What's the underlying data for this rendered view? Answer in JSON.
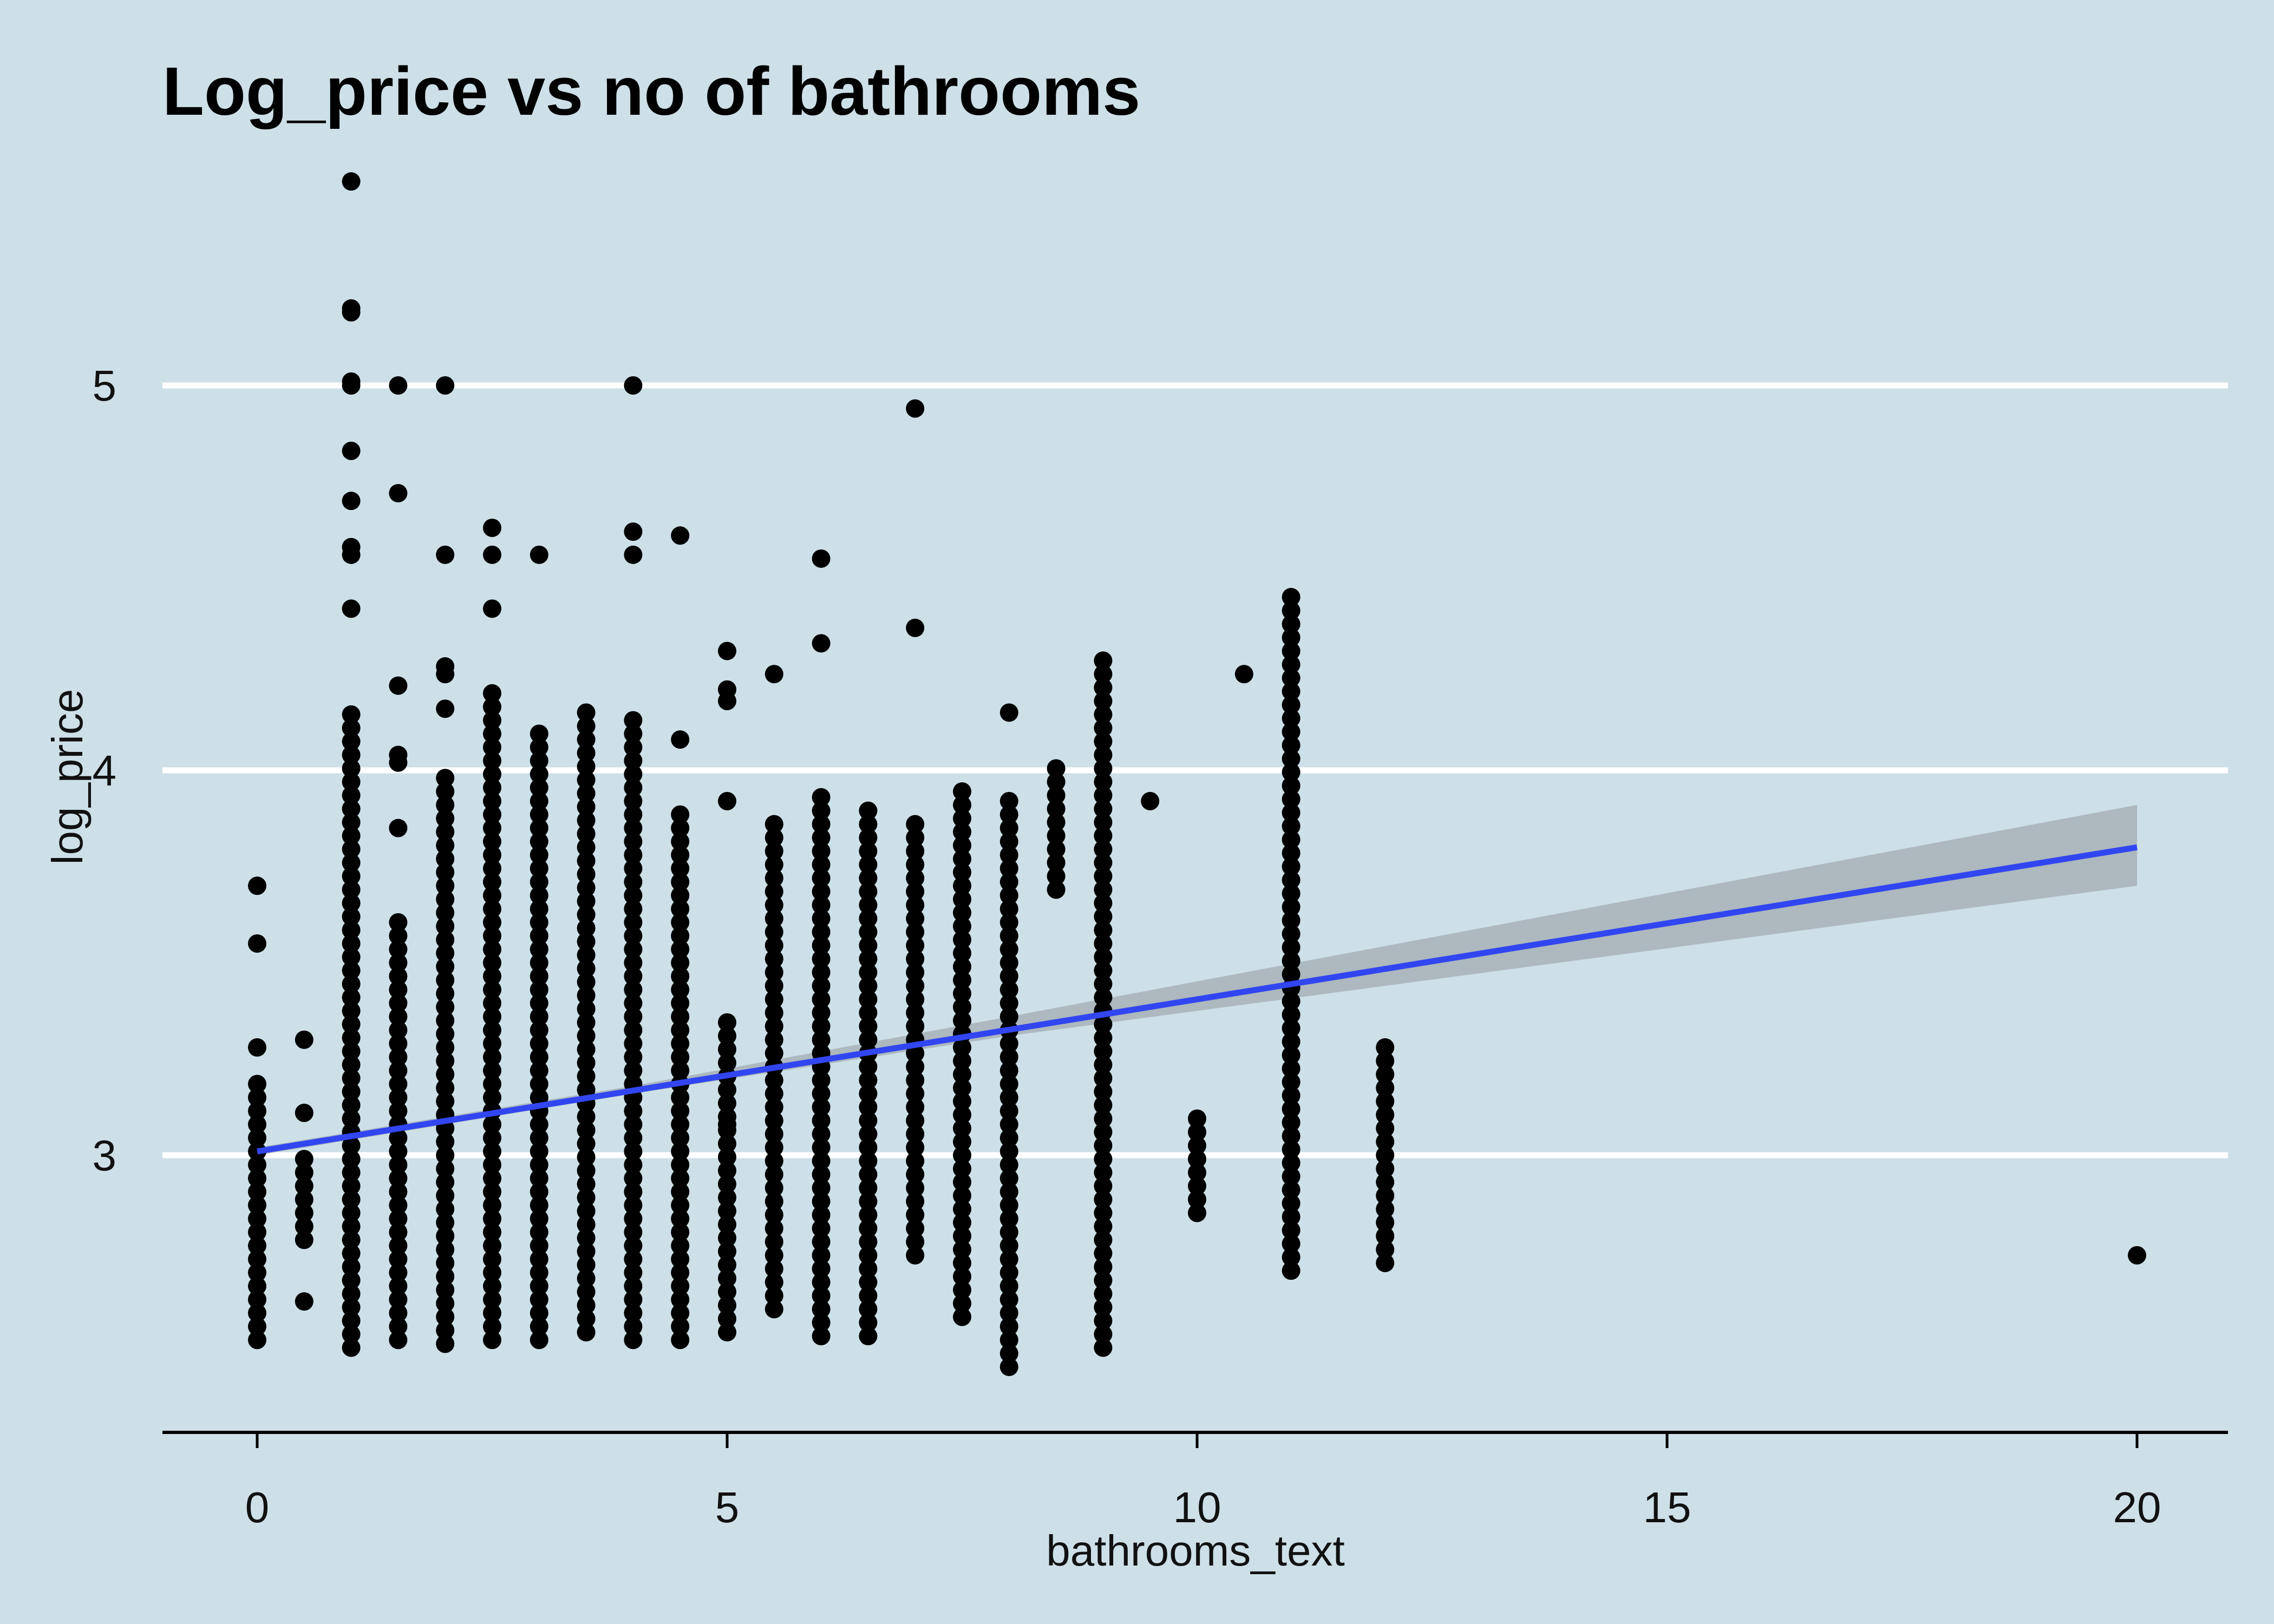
{
  "chart_data": {
    "type": "scatter",
    "title": "Log_price vs no of bathrooms",
    "xlabel": "bathrooms_text",
    "ylabel": "log_price",
    "xlim": [
      -1,
      21
    ],
    "ylim": [
      2.32,
      5.6
    ],
    "x_ticks": [
      0,
      5,
      10,
      15,
      20
    ],
    "y_ticks": [
      3,
      4,
      5
    ],
    "grid": "horizontal major lines only",
    "colors": {
      "background": "#cde0e7",
      "grid": "#ffffff",
      "points": "#000000",
      "fit_line": "#3146f0",
      "confidence_band": "#aab4ba",
      "axis": "#000000"
    },
    "columns": [
      {
        "x": 0,
        "ymin": 2.52,
        "ymax": 3.2,
        "extra": [
          3.28,
          3.55,
          3.7
        ]
      },
      {
        "x": 0.5,
        "ymin": 2.78,
        "ymax": 3.02,
        "extra": [
          2.62,
          3.11,
          3.3
        ]
      },
      {
        "x": 1,
        "ymin": 2.5,
        "ymax": 4.15,
        "extra": [
          4.42,
          4.56,
          4.58,
          4.7,
          4.83,
          5.0,
          5.01,
          5.19,
          5.2,
          5.53
        ]
      },
      {
        "x": 1.5,
        "ymin": 2.52,
        "ymax": 3.62,
        "extra": [
          3.85,
          4.02,
          4.04,
          4.22,
          4.72,
          5.0
        ]
      },
      {
        "x": 2,
        "ymin": 2.51,
        "ymax": 4.0,
        "extra": [
          4.16,
          4.25,
          4.27,
          4.56,
          5.0
        ]
      },
      {
        "x": 2.5,
        "ymin": 2.52,
        "ymax": 4.2,
        "extra": [
          4.42,
          4.56,
          4.63
        ]
      },
      {
        "x": 3,
        "ymin": 2.52,
        "ymax": 4.12,
        "extra": [
          4.56
        ]
      },
      {
        "x": 3.5,
        "ymin": 2.54,
        "ymax": 4.15,
        "extra": []
      },
      {
        "x": 4,
        "ymin": 2.52,
        "ymax": 4.13,
        "extra": [
          4.56,
          4.62,
          5.0
        ]
      },
      {
        "x": 4.5,
        "ymin": 2.52,
        "ymax": 3.9,
        "extra": [
          4.08,
          4.61
        ]
      },
      {
        "x": 5,
        "ymin": 2.54,
        "ymax": 3.35,
        "extra": [
          3.08,
          3.92,
          4.18,
          4.21,
          4.31
        ]
      },
      {
        "x": 5.5,
        "ymin": 2.6,
        "ymax": 3.88,
        "extra": [
          4.25
        ]
      },
      {
        "x": 6,
        "ymin": 2.53,
        "ymax": 3.95,
        "extra": [
          4.33,
          4.55
        ]
      },
      {
        "x": 6.5,
        "ymin": 2.53,
        "ymax": 3.9,
        "extra": []
      },
      {
        "x": 7,
        "ymin": 2.74,
        "ymax": 3.88,
        "extra": [
          4.37,
          4.94
        ]
      },
      {
        "x": 7.5,
        "ymin": 2.58,
        "ymax": 3.95,
        "extra": []
      },
      {
        "x": 8,
        "ymin": 2.45,
        "ymax": 3.93,
        "extra": [
          4.15
        ]
      },
      {
        "x": 8.5,
        "ymin": 3.69,
        "ymax": 4.01,
        "extra": []
      },
      {
        "x": 9,
        "ymin": 2.5,
        "ymax": 4.3,
        "extra": []
      },
      {
        "x": 9.5,
        "ymin": 3.92,
        "ymax": 3.92,
        "extra": []
      },
      {
        "x": 10,
        "ymin": 2.85,
        "ymax": 3.12,
        "extra": []
      },
      {
        "x": 10.5,
        "ymin": 4.25,
        "ymax": 4.25,
        "extra": []
      },
      {
        "x": 11,
        "ymin": 2.7,
        "ymax": 4.48,
        "extra": []
      },
      {
        "x": 12,
        "ymin": 2.72,
        "ymax": 3.28,
        "extra": []
      },
      {
        "x": 20,
        "ymin": 2.74,
        "ymax": 2.74,
        "extra": []
      }
    ],
    "fit_line": {
      "x": [
        0,
        20
      ],
      "y": [
        3.01,
        3.8
      ]
    },
    "confidence_band": {
      "x": [
        0,
        4,
        8,
        20
      ],
      "upper": [
        3.02,
        3.18,
        3.36,
        3.91
      ],
      "lower": [
        3.0,
        3.16,
        3.31,
        3.7
      ]
    }
  }
}
